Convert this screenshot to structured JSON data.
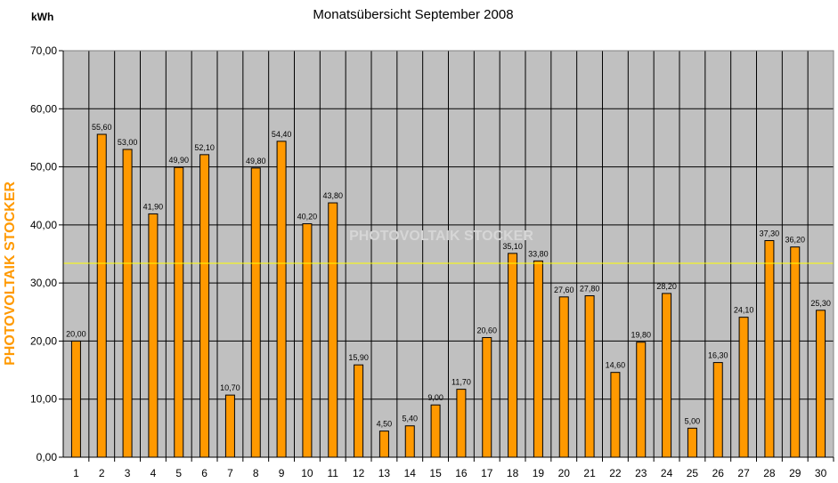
{
  "chart_data": {
    "type": "bar",
    "title": "Monatsübersicht September 2008",
    "ylabel": "kWh",
    "xlabel": "",
    "ylim": [
      0,
      70
    ],
    "yticks": [
      "0,00",
      "10,00",
      "20,00",
      "30,00",
      "40,00",
      "50,00",
      "60,00",
      "70,00"
    ],
    "categories": [
      "1",
      "2",
      "3",
      "4",
      "5",
      "6",
      "7",
      "8",
      "9",
      "10",
      "11",
      "12",
      "13",
      "14",
      "15",
      "16",
      "17",
      "18",
      "19",
      "20",
      "21",
      "22",
      "23",
      "24",
      "25",
      "26",
      "27",
      "28",
      "29",
      "30"
    ],
    "values": [
      20.0,
      55.6,
      53.0,
      41.9,
      49.9,
      52.1,
      10.7,
      49.8,
      54.4,
      40.2,
      43.8,
      15.9,
      4.5,
      5.4,
      9.0,
      11.7,
      20.6,
      35.1,
      33.8,
      27.6,
      27.8,
      14.6,
      19.8,
      28.2,
      5.0,
      16.3,
      24.1,
      37.3,
      36.2,
      25.3
    ],
    "data_labels": [
      "20,00",
      "55,60",
      "53,00",
      "41,90",
      "49,90",
      "52,10",
      "10,70",
      "49,80",
      "54,40",
      "40,20",
      "43,80",
      "15,90",
      "4,50",
      "5,40",
      "9,00",
      "11,70",
      "20,60",
      "35,10",
      "33,80",
      "27,60",
      "27,80",
      "14,60",
      "19,80",
      "28,20",
      "5,00",
      "16,30",
      "24,10",
      "37,30",
      "36,20",
      "25,30"
    ],
    "reference_line": 33.4,
    "grid": true,
    "colors": {
      "bar": "#ff9900",
      "bar_edge": "#000000",
      "plot_bg": "#c0c0c0",
      "grid": "#000000",
      "reference_line": "#ffff00",
      "brand": "#ff9900"
    }
  },
  "side_label": "PHOTOVOLTAIK STOCKER",
  "watermark": "PHOTOVOLTAIK STOCKER"
}
